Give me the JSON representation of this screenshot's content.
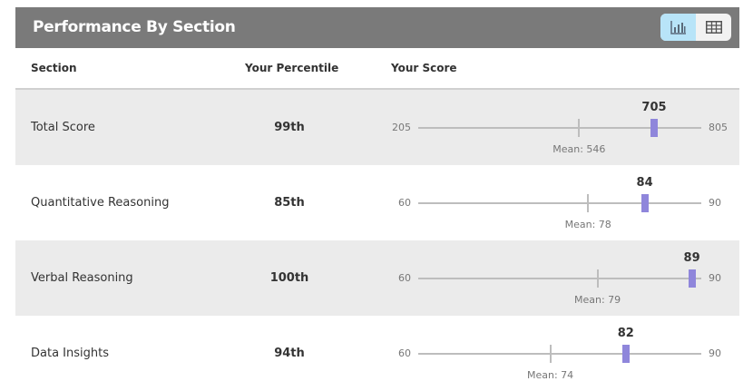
{
  "header": {
    "title": "Performance By Section",
    "chart_view_icon": "bar-chart-icon",
    "table_view_icon": "table-icon"
  },
  "columns": {
    "section": "Section",
    "percentile": "Your Percentile",
    "score": "Your Score"
  },
  "colors": {
    "marker": "#8f86db",
    "header": "#7a7a7a",
    "active_toggle": "#b8e4f8"
  },
  "rows": [
    {
      "name": "Total Score",
      "percentile": "99th",
      "min": "205",
      "max": "805",
      "score": "705",
      "mean": "Mean: 546",
      "min_v": 205,
      "max_v": 805,
      "score_v": 705,
      "mean_v": 546
    },
    {
      "name": "Quantitative Reasoning",
      "percentile": "85th",
      "min": "60",
      "max": "90",
      "score": "84",
      "mean": "Mean: 78",
      "min_v": 60,
      "max_v": 90,
      "score_v": 84,
      "mean_v": 78
    },
    {
      "name": "Verbal Reasoning",
      "percentile": "100th",
      "min": "60",
      "max": "90",
      "score": "89",
      "mean": "Mean: 79",
      "min_v": 60,
      "max_v": 90,
      "score_v": 89,
      "mean_v": 79
    },
    {
      "name": "Data Insights",
      "percentile": "94th",
      "min": "60",
      "max": "90",
      "score": "82",
      "mean": "Mean: 74",
      "min_v": 60,
      "max_v": 90,
      "score_v": 82,
      "mean_v": 74
    }
  ]
}
